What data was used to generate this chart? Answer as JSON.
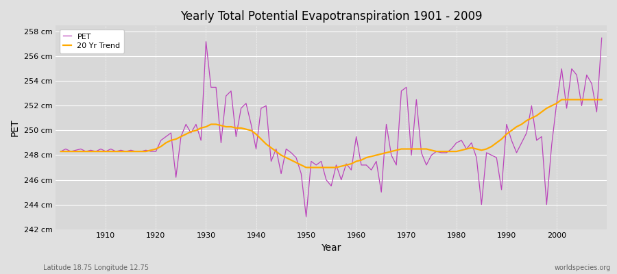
{
  "title": "Yearly Total Potential Evapotranspiration 1901 - 2009",
  "xlabel": "Year",
  "ylabel": "PET",
  "bottom_left_label": "Latitude 18.75 Longitude 12.75",
  "bottom_right_label": "worldspecies.org",
  "fig_bg": "#e0e0e0",
  "plot_bg": "#d8d8d8",
  "pet_color": "#bb44bb",
  "trend_color": "#ffaa00",
  "ylim": [
    242,
    258.5
  ],
  "yticks": [
    242,
    244,
    246,
    248,
    250,
    252,
    254,
    256,
    258
  ],
  "years": [
    1901,
    1902,
    1903,
    1904,
    1905,
    1906,
    1907,
    1908,
    1909,
    1910,
    1911,
    1912,
    1913,
    1914,
    1915,
    1916,
    1917,
    1918,
    1919,
    1920,
    1921,
    1922,
    1923,
    1924,
    1925,
    1926,
    1927,
    1928,
    1929,
    1930,
    1931,
    1932,
    1933,
    1934,
    1935,
    1936,
    1937,
    1938,
    1939,
    1940,
    1941,
    1942,
    1943,
    1944,
    1945,
    1946,
    1947,
    1948,
    1949,
    1950,
    1951,
    1952,
    1953,
    1954,
    1955,
    1956,
    1957,
    1958,
    1959,
    1960,
    1961,
    1962,
    1963,
    1964,
    1965,
    1966,
    1967,
    1968,
    1969,
    1970,
    1971,
    1972,
    1973,
    1974,
    1975,
    1976,
    1977,
    1978,
    1979,
    1980,
    1981,
    1982,
    1983,
    1984,
    1985,
    1986,
    1987,
    1988,
    1989,
    1990,
    1991,
    1992,
    1993,
    1994,
    1995,
    1996,
    1997,
    1998,
    1999,
    2000,
    2001,
    2002,
    2003,
    2004,
    2005,
    2006,
    2007,
    2008,
    2009
  ],
  "pet_values": [
    248.3,
    248.5,
    248.3,
    248.4,
    248.5,
    248.3,
    248.4,
    248.3,
    248.5,
    248.3,
    248.5,
    248.3,
    248.4,
    248.3,
    248.4,
    248.3,
    248.3,
    248.4,
    248.3,
    248.3,
    249.2,
    249.5,
    249.8,
    246.2,
    249.5,
    250.5,
    249.8,
    250.5,
    249.2,
    257.2,
    253.5,
    253.5,
    249.0,
    252.8,
    253.2,
    249.5,
    251.8,
    252.2,
    250.5,
    248.5,
    251.8,
    252.0,
    247.5,
    248.5,
    246.5,
    248.5,
    248.2,
    247.8,
    246.5,
    243.0,
    247.5,
    247.2,
    247.5,
    246.0,
    245.5,
    247.2,
    246.0,
    247.3,
    246.8,
    249.5,
    247.2,
    247.2,
    246.8,
    247.5,
    245.0,
    250.5,
    248.0,
    247.2,
    253.2,
    253.5,
    248.0,
    252.5,
    248.2,
    247.2,
    248.0,
    248.3,
    248.2,
    248.2,
    248.5,
    249.0,
    249.2,
    248.5,
    249.0,
    247.8,
    244.0,
    248.2,
    248.0,
    247.8,
    245.2,
    250.5,
    249.2,
    248.2,
    249.0,
    249.8,
    252.0,
    249.2,
    249.5,
    244.0,
    248.8,
    252.2,
    255.0,
    251.8,
    255.0,
    254.5,
    252.0,
    254.5,
    253.8,
    251.5,
    257.5
  ],
  "trend_values": [
    248.3,
    248.3,
    248.3,
    248.3,
    248.3,
    248.3,
    248.3,
    248.3,
    248.3,
    248.3,
    248.3,
    248.3,
    248.3,
    248.3,
    248.3,
    248.3,
    248.3,
    248.3,
    248.4,
    248.5,
    248.7,
    249.0,
    249.2,
    249.3,
    249.5,
    249.7,
    249.9,
    250.0,
    250.2,
    250.3,
    250.5,
    250.5,
    250.4,
    250.3,
    250.3,
    250.2,
    250.2,
    250.1,
    250.0,
    249.7,
    249.3,
    248.9,
    248.6,
    248.3,
    248.0,
    247.8,
    247.6,
    247.4,
    247.2,
    247.0,
    247.0,
    247.0,
    247.0,
    247.0,
    247.0,
    247.0,
    247.1,
    247.2,
    247.3,
    247.5,
    247.6,
    247.8,
    247.9,
    248.0,
    248.1,
    248.2,
    248.3,
    248.4,
    248.5,
    248.5,
    248.5,
    248.5,
    248.5,
    248.5,
    248.4,
    248.3,
    248.3,
    248.3,
    248.3,
    248.3,
    248.4,
    248.5,
    248.6,
    248.5,
    248.4,
    248.5,
    248.7,
    249.0,
    249.3,
    249.7,
    250.0,
    250.3,
    250.5,
    250.8,
    251.0,
    251.2,
    251.5,
    251.8,
    252.0,
    252.2,
    252.5,
    252.5,
    252.5,
    252.5,
    252.5,
    252.5,
    252.5,
    252.5,
    252.5
  ]
}
